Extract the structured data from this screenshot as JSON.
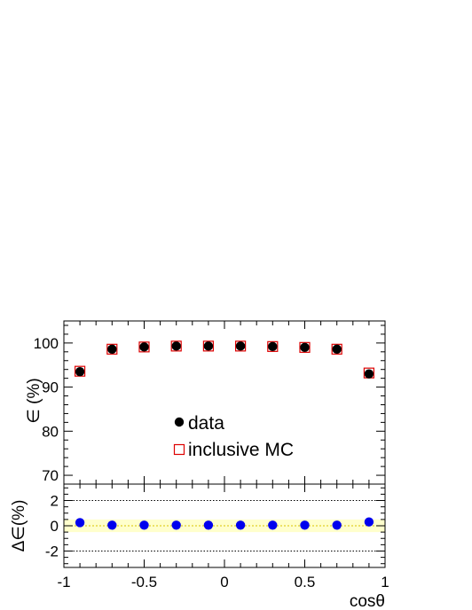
{
  "chart_data": [
    {
      "type": "scatter",
      "panel": "efficiency",
      "ylabel": "∈ (%)",
      "xlim": [
        -1,
        1
      ],
      "ylim": [
        68,
        105
      ],
      "yticks": [
        70,
        80,
        90,
        100
      ],
      "legend_position": "center",
      "series": [
        {
          "name": "data",
          "marker": "filled-circle",
          "color": "#000000",
          "x": [
            -0.9,
            -0.7,
            -0.5,
            -0.3,
            -0.1,
            0.1,
            0.3,
            0.5,
            0.7,
            0.9
          ],
          "y": [
            93.5,
            98.6,
            99.1,
            99.3,
            99.3,
            99.3,
            99.2,
            99.0,
            98.6,
            93.0
          ]
        },
        {
          "name": "inclusive MC",
          "marker": "open-square",
          "color": "#dd0000",
          "x": [
            -0.9,
            -0.7,
            -0.5,
            -0.3,
            -0.1,
            0.1,
            0.3,
            0.5,
            0.7,
            0.9
          ],
          "y": [
            93.6,
            98.6,
            99.1,
            99.3,
            99.3,
            99.3,
            99.2,
            99.0,
            98.6,
            93.2
          ]
        }
      ]
    },
    {
      "type": "scatter",
      "panel": "difference",
      "xlabel": "cosθ",
      "ylabel": "Δ∈(%)",
      "xlim": [
        -1,
        1
      ],
      "ylim": [
        -3.3,
        3.3
      ],
      "xticks": [
        -1,
        -0.5,
        0,
        0.5,
        1
      ],
      "xtick_labels": [
        "-1",
        "-0.5",
        "0",
        "0.5",
        "1"
      ],
      "yticks": [
        -2,
        0,
        2
      ],
      "reference_lines": [
        2,
        -2
      ],
      "band": [
        -0.5,
        0.5
      ],
      "band_color": "#ffffcc",
      "series": [
        {
          "marker": "filled-circle",
          "color": "#0000ee",
          "x": [
            -0.9,
            -0.7,
            -0.5,
            -0.3,
            -0.1,
            0.1,
            0.3,
            0.5,
            0.7,
            0.9
          ],
          "y": [
            0.25,
            0.05,
            0.05,
            0.05,
            0.05,
            0.05,
            0.05,
            0.05,
            0.05,
            0.3
          ]
        }
      ]
    }
  ]
}
